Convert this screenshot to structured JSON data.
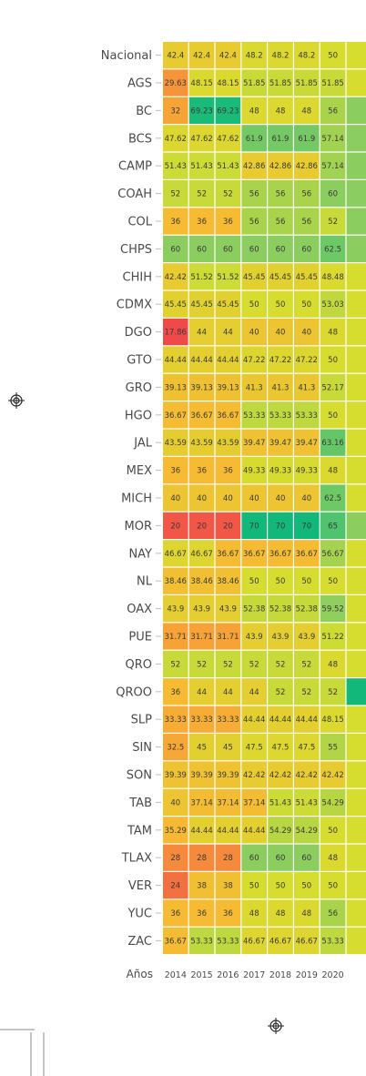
{
  "chart_data": {
    "type": "heatmap",
    "title": "",
    "xlabel": "Años",
    "ylabel": "",
    "years": [
      "2014",
      "2015",
      "2016",
      "2017",
      "2018",
      "2019",
      "2020"
    ],
    "rows": [
      {
        "name": "Nacional",
        "values": [
          42.4,
          42.4,
          42.4,
          48.2,
          48.2,
          48.2,
          50
        ],
        "labels": [
          "42.4",
          "42.4",
          "42.4",
          "48.2",
          "48.2",
          "48.2",
          "50"
        ]
      },
      {
        "name": "AGS",
        "values": [
          29.63,
          48.15,
          48.15,
          51.85,
          51.85,
          51.85,
          51.85
        ],
        "labels": [
          "29.63",
          "48.15",
          "48.15",
          "51.85",
          "51.85",
          "51.85",
          "51.85"
        ]
      },
      {
        "name": "BC",
        "values": [
          32,
          69.23,
          69.23,
          48,
          48,
          48,
          56
        ],
        "labels": [
          "32",
          "69.23",
          "69.23",
          "48",
          "48",
          "48",
          "56"
        ]
      },
      {
        "name": "BCS",
        "values": [
          47.62,
          47.62,
          47.62,
          61.9,
          61.9,
          61.9,
          57.14
        ],
        "labels": [
          "47.62",
          "47.62",
          "47.62",
          "61.9",
          "61.9",
          "61.9",
          "57.14"
        ]
      },
      {
        "name": "CAMP",
        "values": [
          51.43,
          51.43,
          51.43,
          42.86,
          42.86,
          42.86,
          57.14
        ],
        "labels": [
          "51.43",
          "51.43",
          "51.43",
          "42.86",
          "42.86",
          "42.86",
          "57.14"
        ]
      },
      {
        "name": "COAH",
        "values": [
          52,
          52,
          52,
          56,
          56,
          56,
          60
        ],
        "labels": [
          "52",
          "52",
          "52",
          "56",
          "56",
          "56",
          "60"
        ]
      },
      {
        "name": "COL",
        "values": [
          36,
          36,
          36,
          56,
          56,
          56,
          52
        ],
        "labels": [
          "36",
          "36",
          "36",
          "56",
          "56",
          "56",
          "52"
        ]
      },
      {
        "name": "CHPS",
        "values": [
          60,
          60,
          60,
          60,
          60,
          60,
          62.5
        ],
        "labels": [
          "60",
          "60",
          "60",
          "60",
          "60",
          "60",
          "62.5"
        ]
      },
      {
        "name": "CHIH",
        "values": [
          42.42,
          51.52,
          51.52,
          45.45,
          45.45,
          45.45,
          48.48
        ],
        "labels": [
          "42.42",
          "51.52",
          "51.52",
          "45.45",
          "45.45",
          "45.45",
          "48.48"
        ]
      },
      {
        "name": "CDMX",
        "values": [
          45.45,
          45.45,
          45.45,
          50,
          50,
          50,
          53.03
        ],
        "labels": [
          "45.45",
          "45.45",
          "45.45",
          "50",
          "50",
          "50",
          "53.03"
        ]
      },
      {
        "name": "DGO",
        "values": [
          17.86,
          44,
          44,
          40,
          40,
          40,
          48
        ],
        "labels": [
          "17.86",
          "44",
          "44",
          "40",
          "40",
          "40",
          "48"
        ]
      },
      {
        "name": "GTO",
        "values": [
          44.44,
          44.44,
          44.44,
          47.22,
          47.22,
          47.22,
          50
        ],
        "labels": [
          "44.44",
          "44.44",
          "44.44",
          "47.22",
          "47.22",
          "47.22",
          "50"
        ]
      },
      {
        "name": "GRO",
        "values": [
          39.13,
          39.13,
          39.13,
          41.3,
          41.3,
          41.3,
          52.17
        ],
        "labels": [
          "39.13",
          "39.13",
          "39.13",
          "41.3",
          "41.3",
          "41.3",
          "52.17"
        ]
      },
      {
        "name": "HGO",
        "values": [
          36.67,
          36.67,
          36.67,
          53.33,
          53.33,
          53.33,
          50
        ],
        "labels": [
          "36.67",
          "36.67",
          "36.67",
          "53.33",
          "53.33",
          "53.33",
          "50"
        ]
      },
      {
        "name": "JAL",
        "values": [
          43.59,
          43.59,
          43.59,
          39.47,
          39.47,
          39.47,
          63.16
        ],
        "labels": [
          "43.59",
          "43.59",
          "43.59",
          "39.47",
          "39.47",
          "39.47",
          "63.16"
        ]
      },
      {
        "name": "MEX",
        "values": [
          36,
          36,
          36,
          49.33,
          49.33,
          49.33,
          48
        ],
        "labels": [
          "36",
          "36",
          "36",
          "49.33",
          "49.33",
          "49.33",
          "48"
        ]
      },
      {
        "name": "MICH",
        "values": [
          40,
          40,
          40,
          40,
          40,
          40,
          62.5
        ],
        "labels": [
          "40",
          "40",
          "40",
          "40",
          "40",
          "40",
          "62.5"
        ]
      },
      {
        "name": "MOR",
        "values": [
          20,
          20,
          20,
          70,
          70,
          70,
          65
        ],
        "labels": [
          "20",
          "20",
          "20",
          "70",
          "70",
          "70",
          "65"
        ]
      },
      {
        "name": "NAY",
        "values": [
          46.67,
          46.67,
          36.67,
          36.67,
          36.67,
          36.67,
          56.67
        ],
        "labels": [
          "46.67",
          "46.67",
          "36.67",
          "36.67",
          "36.67",
          "36.67",
          "56.67"
        ]
      },
      {
        "name": "NL",
        "values": [
          38.46,
          38.46,
          38.46,
          50,
          50,
          50,
          50
        ],
        "labels": [
          "38.46",
          "38.46",
          "38.46",
          "50",
          "50",
          "50",
          "50"
        ]
      },
      {
        "name": "OAX",
        "values": [
          43.9,
          43.9,
          43.9,
          52.38,
          52.38,
          52.38,
          59.52
        ],
        "labels": [
          "43.9",
          "43.9",
          "43.9",
          "52.38",
          "52.38",
          "52.38",
          "59.52"
        ]
      },
      {
        "name": "PUE",
        "values": [
          31.71,
          31.71,
          31.71,
          43.9,
          43.9,
          43.9,
          51.22
        ],
        "labels": [
          "31.71",
          "31.71",
          "31.71",
          "43.9",
          "43.9",
          "43.9",
          "51.22"
        ]
      },
      {
        "name": "QRO",
        "values": [
          52,
          52,
          52,
          52,
          52,
          52,
          48
        ],
        "labels": [
          "52",
          "52",
          "52",
          "52",
          "52",
          "52",
          "48"
        ]
      },
      {
        "name": "QROO",
        "values": [
          36,
          44,
          44,
          44,
          52,
          52,
          52
        ],
        "labels": [
          "36",
          "44",
          "44",
          "44",
          "52",
          "52",
          "52"
        ]
      },
      {
        "name": "SLP",
        "values": [
          33.33,
          33.33,
          33.33,
          44.44,
          44.44,
          44.44,
          48.15
        ],
        "labels": [
          "33.33",
          "33.33",
          "33.33",
          "44.44",
          "44.44",
          "44.44",
          "48.15"
        ]
      },
      {
        "name": "SIN",
        "values": [
          32.5,
          45,
          45,
          47.5,
          47.5,
          47.5,
          55
        ],
        "labels": [
          "32.5",
          "45",
          "45",
          "47.5",
          "47.5",
          "47.5",
          "55"
        ]
      },
      {
        "name": "SON",
        "values": [
          39.39,
          39.39,
          39.39,
          42.42,
          42.42,
          42.42,
          42.42
        ],
        "labels": [
          "39.39",
          "39.39",
          "39.39",
          "42.42",
          "42.42",
          "42.42",
          "42.42"
        ]
      },
      {
        "name": "TAB",
        "values": [
          40,
          37.14,
          37.14,
          37.14,
          51.43,
          51.43,
          54.29
        ],
        "labels": [
          "40",
          "37.14",
          "37.14",
          "37.14",
          "51.43",
          "51.43",
          "54.29"
        ]
      },
      {
        "name": "TAM",
        "values": [
          35.29,
          44.44,
          44.44,
          44.44,
          54.29,
          54.29,
          50
        ],
        "labels": [
          "35.29",
          "44.44",
          "44.44",
          "44.44",
          "54.29",
          "54.29",
          "50"
        ]
      },
      {
        "name": "TLAX",
        "values": [
          28,
          28,
          28,
          60,
          60,
          60,
          48
        ],
        "labels": [
          "28",
          "28",
          "28",
          "60",
          "60",
          "60",
          "48"
        ]
      },
      {
        "name": "VER",
        "values": [
          24,
          38,
          38,
          50,
          50,
          50,
          50
        ],
        "labels": [
          "24",
          "38",
          "38",
          "50",
          "50",
          "50",
          "50"
        ]
      },
      {
        "name": "YUC",
        "values": [
          36,
          36,
          36,
          48,
          48,
          48,
          56
        ],
        "labels": [
          "36",
          "36",
          "36",
          "48",
          "48",
          "48",
          "56"
        ]
      },
      {
        "name": "ZAC",
        "values": [
          36.67,
          53.33,
          53.33,
          46.67,
          46.67,
          46.67,
          53.33
        ],
        "labels": [
          "36.67",
          "53.33",
          "53.33",
          "46.67",
          "46.67",
          "46.67",
          "53.33"
        ]
      }
    ],
    "color_scale": {
      "type": "diverging",
      "low": "#f0434a",
      "mid_low": "#f8b733",
      "mid": "#d7dd2f",
      "mid_high": "#8ccd5f",
      "high": "#11b87a"
    },
    "cut_off_next_column_fill": [
      "#d7dd2f",
      "#d7dd2f",
      "#8ccd5f",
      "#8ccd5f",
      "#8ccd5f",
      "#8ccd5f",
      "#8ccd5f",
      "#8ccd5f",
      "#d7dd2f",
      "#d7dd2f",
      "#d7dd2f",
      "#d7dd2f",
      "#d7dd2f",
      "#d7dd2f",
      "#d7dd2f",
      "#d7dd2f",
      "#d7dd2f",
      "#8ccd5f",
      "#d7dd2f",
      "#d7dd2f",
      "#d7dd2f",
      "#d7dd2f",
      "#d7dd2f",
      "#11b87a",
      "#d7dd2f",
      "#d7dd2f",
      "#d7dd2f",
      "#d7dd2f",
      "#d7dd2f",
      "#d7dd2f",
      "#d7dd2f",
      "#d7dd2f",
      "#d7dd2f"
    ]
  }
}
